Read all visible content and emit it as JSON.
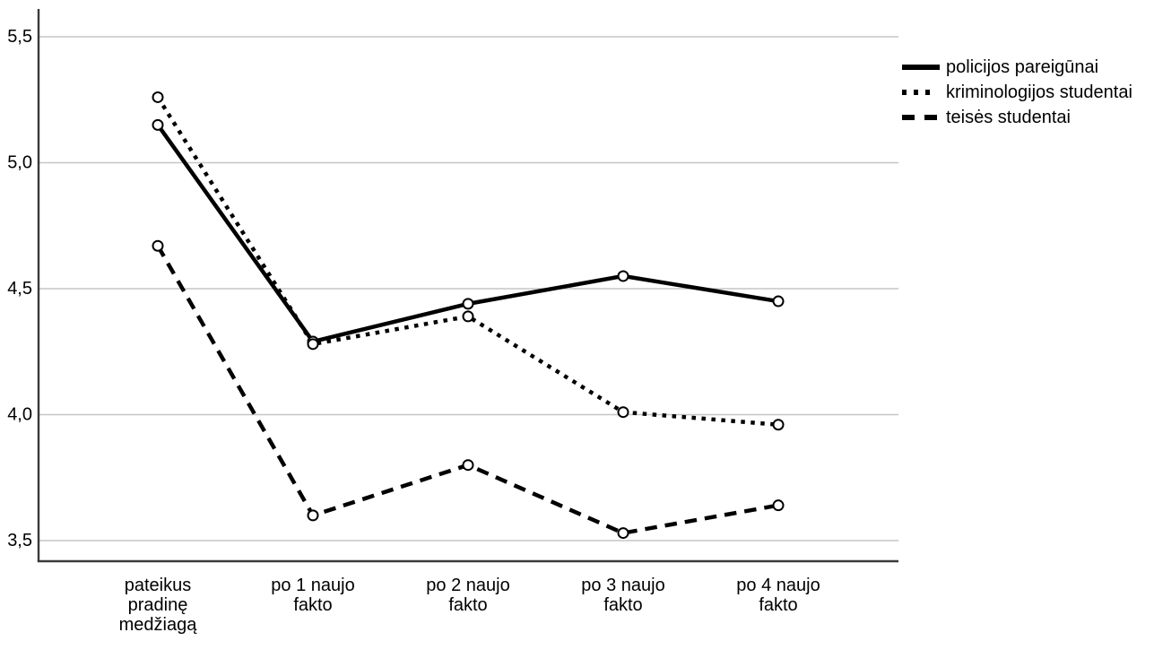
{
  "figure": {
    "background": "#ffffff"
  },
  "legend": {
    "position": "top-right",
    "items": [
      {
        "label": "policijos pareigūnai",
        "style": "solid"
      },
      {
        "label": "kriminologijos studentai",
        "style": "dotted"
      },
      {
        "label": "teisės studentai",
        "style": "dashed"
      }
    ]
  },
  "chart_data": {
    "type": "line",
    "title": "",
    "xlabel": "",
    "ylabel": "",
    "grid": "horizontal",
    "legend_position": "top-right",
    "categories": [
      "pateikus pradinę medžiagą",
      "po 1 naujo fakto",
      "po 2 naujo fakto",
      "po 3 naujo fakto",
      "po 4 naujo fakto"
    ],
    "category_tick_lines": [
      [
        "pateikus",
        "pradinę",
        "medžiagą"
      ],
      [
        "po 1 naujo",
        "fakto"
      ],
      [
        "po 2 naujo",
        "fakto"
      ],
      [
        "po 3 naujo",
        "fakto"
      ],
      [
        "po 4 naujo",
        "fakto"
      ]
    ],
    "series": [
      {
        "name": "policijos pareigūnai",
        "line_style": "solid",
        "color": "#000000",
        "marker": "open-circle",
        "values": [
          5.15,
          4.29,
          4.44,
          4.55,
          4.45
        ]
      },
      {
        "name": "kriminologijos studentai",
        "line_style": "dotted",
        "color": "#000000",
        "marker": "open-circle",
        "values": [
          5.26,
          4.28,
          4.39,
          4.01,
          3.96
        ]
      },
      {
        "name": "teisės studentai",
        "line_style": "dashed",
        "color": "#000000",
        "marker": "open-circle",
        "values": [
          4.67,
          3.6,
          3.8,
          3.53,
          3.64
        ]
      }
    ],
    "y_axis": {
      "min": 3.42,
      "max": 5.61,
      "ticks": [
        5.5,
        5.0,
        4.5,
        4.0,
        3.5
      ],
      "tick_labels": [
        "5,5",
        "5,0",
        "4,5",
        "4,0",
        "3,5"
      ]
    },
    "colors": {
      "series": "#000000",
      "grid": "#c6c6c6",
      "axis": "#3a3a3a",
      "tick_text": "#000000",
      "marker_fill": "#ffffff"
    }
  }
}
